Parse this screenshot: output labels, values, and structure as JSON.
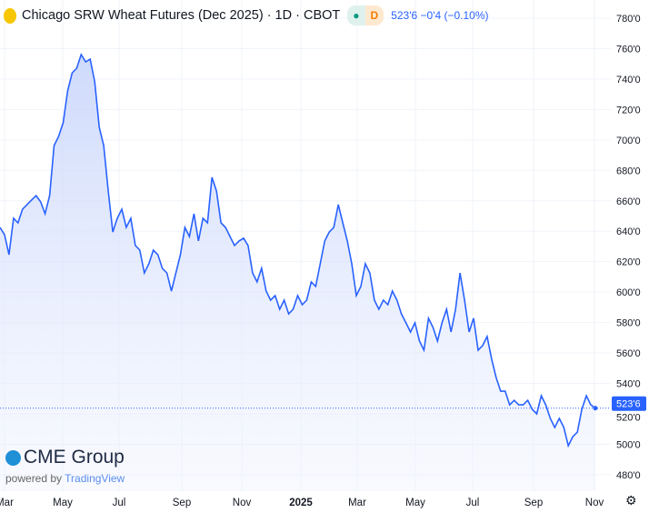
{
  "header": {
    "title": "Chicago SRW Wheat Futures (Dec 2025) · 1D · CBOT",
    "status_dot": "●",
    "interval_badge": "D",
    "quote": "523'6 −0'4 (−0.10%)"
  },
  "branding": {
    "logo_text": "CME Group",
    "powered_by": "powered by",
    "tradingview": "TradingView"
  },
  "icons": {
    "settings": "gear-icon"
  },
  "colors": {
    "line": "#2962ff",
    "fill_top": "#c9d6fb",
    "price_label_bg": "#2962ff"
  },
  "chart_data": {
    "type": "area",
    "title": "Chicago SRW Wheat Futures (Dec 2025)",
    "x_range": [
      "2024-03",
      "2025-11"
    ],
    "x_ticks": [
      "Mar",
      "May",
      "Jul",
      "Sep",
      "Nov",
      "2025",
      "Mar",
      "May",
      "Jul",
      "Sep",
      "Nov"
    ],
    "ylim": [
      480,
      780
    ],
    "y_ticks": [
      "780'0",
      "760'0",
      "740'0",
      "720'0",
      "700'0",
      "680'0",
      "660'0",
      "640'0",
      "620'0",
      "600'0",
      "580'0",
      "560'0",
      "540'0",
      "520'0",
      "500'0",
      "480'0"
    ],
    "last_price": 523.75,
    "last_label": "523'6",
    "grid": true,
    "values": [
      642.5,
      637.7,
      624.6,
      648.5,
      645.5,
      654.5,
      657.5,
      660.5,
      663.4,
      659.3,
      651.5,
      663.4,
      696.3,
      702.3,
      711.3,
      732.2,
      744.1,
      747.1,
      756.1,
      751.3,
      753.1,
      738.2,
      708.3,
      696.3,
      666.4,
      639.5,
      648.5,
      654.5,
      642.5,
      648.5,
      630.6,
      627.6,
      612.6,
      618.6,
      627.6,
      624.6,
      615.6,
      612.6,
      600.7,
      612.6,
      624.6,
      642.5,
      636.5,
      651.5,
      633.6,
      648.5,
      645.5,
      675.4,
      666.4,
      645.5,
      642.5,
      636.5,
      630.6,
      633.6,
      635.4,
      630.6,
      612.6,
      606.7,
      615.6,
      600.7,
      594.7,
      597.7,
      588.7,
      594.7,
      585.7,
      588.7,
      597.7,
      591.7,
      594.7,
      606.7,
      603.7,
      618.6,
      633.6,
      639.5,
      642.5,
      657.5,
      645.5,
      633.6,
      618.6,
      597.7,
      603.7,
      618.6,
      612.6,
      594.7,
      588.7,
      594.7,
      591.7,
      600.7,
      594.7,
      585.7,
      579.8,
      573.8,
      579.8,
      567.8,
      561.8,
      582.8,
      576.8,
      567.8,
      579.8,
      588.7,
      573.8,
      588.7,
      612.6,
      594.7,
      573.8,
      582.8,
      561.8,
      564.8,
      570.8,
      555.9,
      543.9,
      534.9,
      534.9,
      525.9,
      528.9,
      525.9,
      525.9,
      528.9,
      523,
      520,
      531.9,
      525.9,
      517,
      511,
      517,
      511,
      499,
      505,
      508,
      523,
      531.9,
      525.9,
      523.75
    ]
  }
}
